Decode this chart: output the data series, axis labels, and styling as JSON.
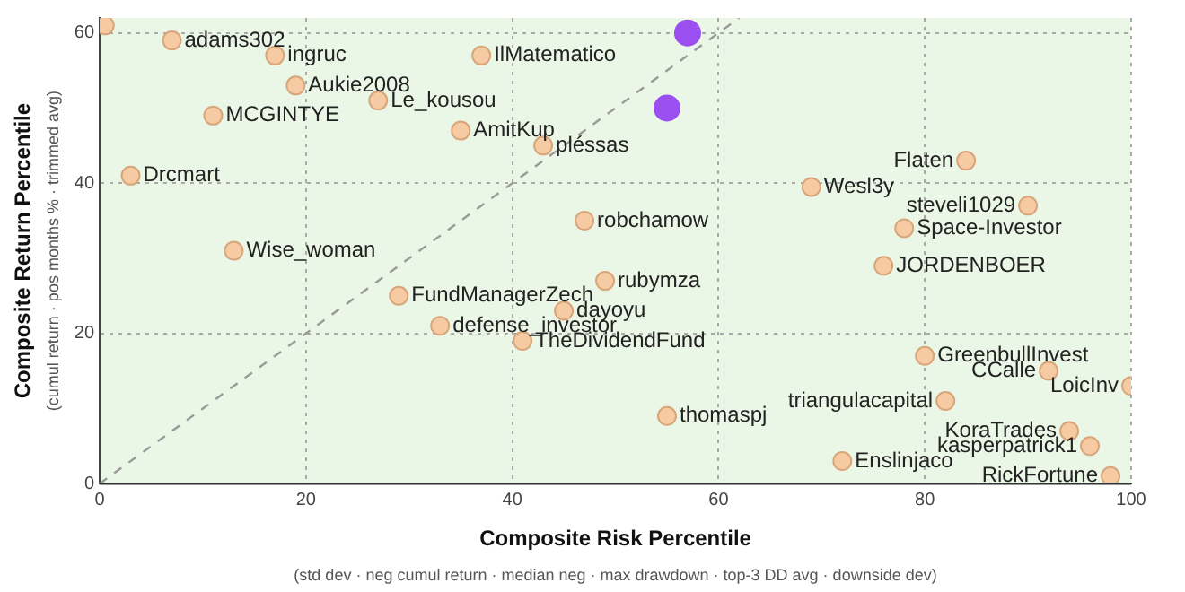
{
  "chart_data": {
    "type": "scatter",
    "xlabel": "Composite Risk Percentile",
    "ylabel": "Composite Return Percentile",
    "xlim": [
      0,
      100
    ],
    "ylim": [
      0,
      62
    ],
    "xticks": [
      0,
      20,
      40,
      60,
      80,
      100
    ],
    "yticks": [
      0,
      20,
      40,
      60
    ],
    "grid": true,
    "legend": false,
    "marker": "circle",
    "series": [
      {
        "color": "#f6cba3",
        "x": [
          0.5,
          7,
          17,
          37,
          19,
          27,
          11,
          35,
          43,
          3,
          84,
          69,
          90,
          47,
          78,
          13,
          76,
          49,
          29,
          45,
          33,
          41,
          80,
          92,
          100,
          82,
          55,
          94,
          96,
          72,
          98
        ],
        "values": [
          61,
          59,
          57,
          57,
          53,
          51,
          49,
          47,
          45,
          41,
          43,
          39.5,
          37,
          35,
          34,
          31,
          29,
          27,
          25,
          23,
          21,
          19,
          17,
          15,
          13,
          11,
          9,
          7,
          5,
          3,
          1
        ]
      },
      {
        "color": "#9b4ff0",
        "x": [
          57,
          55
        ],
        "values": [
          60,
          50
        ]
      },
      {
        "type": "line",
        "color": "#999999",
        "line_style": "dashed",
        "marker": "none",
        "x": [
          0,
          62
        ],
        "values": [
          0,
          62
        ]
      }
    ],
    "annotations": [
      "(std dev · neg cumul return · median neg · max drawdown · top-3 DD avg · downside dev)",
      "(cumul return · pos months % · trimmed avg)",
      {
        "text": "adams302",
        "x": 7,
        "y": 59
      },
      {
        "text": "ingruc",
        "x": 17,
        "y": 57
      },
      {
        "text": "IlMatematico",
        "x": 37,
        "y": 57
      },
      {
        "text": "Aukie2008",
        "x": 19,
        "y": 53
      },
      {
        "text": "Le_kousou",
        "x": 27,
        "y": 51
      },
      {
        "text": "MCGINTYE",
        "x": 11,
        "y": 49
      },
      {
        "text": "AmitKup",
        "x": 35,
        "y": 47
      },
      {
        "text": "pléssas",
        "x": 43,
        "y": 45
      },
      {
        "text": "Drcmart",
        "x": 3,
        "y": 41
      },
      {
        "text": "Flaten",
        "x": 84,
        "y": 43
      },
      {
        "text": "Wesl3y",
        "x": 69,
        "y": 39.5
      },
      {
        "text": "steveli1029",
        "x": 90,
        "y": 37
      },
      {
        "text": "robchamow",
        "x": 47,
        "y": 35
      },
      {
        "text": "Space-Investor",
        "x": 78,
        "y": 34
      },
      {
        "text": "Wise_woman",
        "x": 13,
        "y": 31
      },
      {
        "text": "JORDENBOER",
        "x": 76,
        "y": 29
      },
      {
        "text": "rubymza",
        "x": 49,
        "y": 27
      },
      {
        "text": "FundManagerZech",
        "x": 29,
        "y": 25
      },
      {
        "text": "dayoyu",
        "x": 45,
        "y": 23
      },
      {
        "text": "defense_investor",
        "x": 33,
        "y": 21
      },
      {
        "text": "TheDividendFund",
        "x": 41,
        "y": 19
      },
      {
        "text": "GreenbullInvest",
        "x": 80,
        "y": 17
      },
      {
        "text": "CCalle",
        "x": 92,
        "y": 15
      },
      {
        "text": "LoicInv",
        "x": 100,
        "y": 13
      },
      {
        "text": "triangulacapital",
        "x": 82,
        "y": 11
      },
      {
        "text": "thomaspj",
        "x": 55,
        "y": 9
      },
      {
        "text": "KoraTrades",
        "x": 94,
        "y": 7
      },
      {
        "text": "kasperpatrick1",
        "x": 96,
        "y": 5
      },
      {
        "text": "Enslinjaco",
        "x": 72,
        "y": 3
      },
      {
        "text": "RickFortune",
        "x": 98,
        "y": 1
      }
    ]
  }
}
